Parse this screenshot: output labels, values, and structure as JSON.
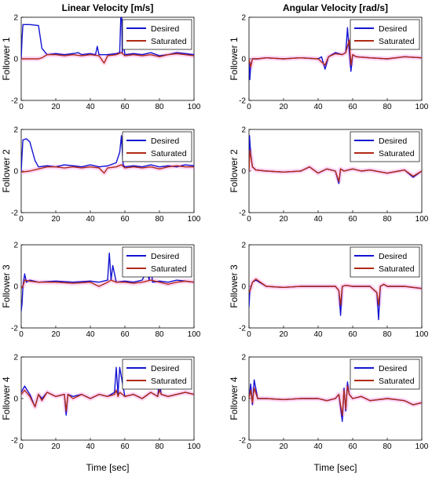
{
  "figure": {
    "col_titles": [
      "Linear Velocity [m/s]",
      "Angular Velocity [rad/s]"
    ],
    "row_labels": [
      "Follower 1",
      "Follower 2",
      "Follower 3",
      "Follower 4"
    ],
    "xlabel": "Time [sec]",
    "series_colors": {
      "Desired": "#1414d2",
      "Saturated": "#b02a14"
    },
    "shade_color": "#ff6ee6"
  },
  "chart_data": [
    {
      "type": "line",
      "title": "Linear Velocity [m/s]",
      "ylabel": "Follower 1",
      "xlabel": "",
      "xlim": [
        0,
        100
      ],
      "ylim": [
        -2,
        2
      ],
      "xticks": [
        0,
        20,
        40,
        60,
        80,
        100
      ],
      "yticks": [
        -2,
        0,
        2
      ],
      "grid": false,
      "legend": "top-right",
      "series": [
        {
          "name": "Desired",
          "x": [
            0,
            0.5,
            1,
            5,
            10,
            12,
            15,
            20,
            25,
            30,
            33,
            35,
            40,
            43,
            44,
            45,
            50,
            55,
            57,
            58,
            58.5,
            59,
            60,
            65,
            70,
            75,
            80,
            85,
            90,
            95,
            100
          ],
          "y": [
            0,
            1.0,
            1.65,
            1.65,
            1.6,
            0.5,
            0.2,
            0.25,
            0.2,
            0.25,
            0.3,
            0.2,
            0.25,
            0.2,
            0.6,
            0.2,
            0.2,
            0.25,
            0.3,
            3.0,
            0.3,
            0.9,
            0.2,
            0.25,
            0.2,
            0.3,
            0.15,
            0.2,
            0.3,
            0.25,
            0.2
          ]
        },
        {
          "name": "Saturated",
          "x": [
            0,
            5,
            10,
            12,
            15,
            20,
            25,
            30,
            35,
            40,
            45,
            48,
            50,
            55,
            58,
            60,
            65,
            70,
            75,
            80,
            85,
            90,
            95,
            100
          ],
          "y": [
            0,
            0,
            0,
            0.05,
            0.2,
            0.2,
            0.15,
            0.2,
            0.15,
            0.2,
            0.15,
            -0.2,
            0.15,
            0.2,
            0.3,
            0.15,
            0.2,
            0.15,
            0.2,
            0.1,
            0.2,
            0.25,
            0.2,
            0.15
          ]
        }
      ]
    },
    {
      "type": "line",
      "title": "Angular Velocity [rad/s]",
      "ylabel": "Follower 1",
      "xlabel": "",
      "xlim": [
        0,
        100
      ],
      "ylim": [
        -2,
        2
      ],
      "xticks": [
        0,
        20,
        40,
        60,
        80,
        100
      ],
      "yticks": [
        -2,
        0,
        2
      ],
      "grid": false,
      "legend": "top-right",
      "series": [
        {
          "name": "Desired",
          "x": [
            0,
            0.5,
            1,
            2,
            5,
            10,
            20,
            30,
            40,
            42,
            44,
            46,
            50,
            54,
            56,
            57,
            58,
            59,
            60,
            62,
            70,
            80,
            90,
            100
          ],
          "y": [
            0,
            -1.0,
            -0.3,
            0,
            0,
            0.05,
            0,
            0.05,
            0,
            0.1,
            -0.5,
            0.1,
            0.3,
            0.2,
            0.3,
            1.5,
            0.4,
            -0.6,
            0.2,
            0.1,
            0.05,
            0,
            0.1,
            0.05
          ]
        },
        {
          "name": "Saturated",
          "x": [
            0,
            1,
            2,
            5,
            10,
            20,
            30,
            40,
            44,
            46,
            50,
            54,
            56,
            58,
            59,
            60,
            62,
            70,
            80,
            90,
            100
          ],
          "y": [
            0,
            -0.4,
            0,
            0,
            0.05,
            0,
            0.05,
            0,
            -0.3,
            0.1,
            0.25,
            0.2,
            0.3,
            0.9,
            -0.3,
            0.2,
            0.1,
            0.05,
            0,
            0.1,
            0.05
          ]
        }
      ]
    },
    {
      "type": "line",
      "title": "",
      "ylabel": "Follower 2",
      "xlabel": "",
      "xlim": [
        0,
        100
      ],
      "ylim": [
        -2,
        2
      ],
      "xticks": [
        0,
        20,
        40,
        60,
        80,
        100
      ],
      "yticks": [
        -2,
        0,
        2
      ],
      "grid": false,
      "legend": "top-right",
      "series": [
        {
          "name": "Desired",
          "x": [
            0,
            0.5,
            1,
            3,
            5,
            8,
            10,
            15,
            20,
            25,
            30,
            35,
            40,
            45,
            50,
            55,
            57,
            58,
            59,
            60,
            65,
            70,
            75,
            80,
            85,
            90,
            95,
            100
          ],
          "y": [
            0,
            0.8,
            1.5,
            1.55,
            1.4,
            0.5,
            0.2,
            0.25,
            0.2,
            0.3,
            0.25,
            0.2,
            0.3,
            0.2,
            0.25,
            0.4,
            0.9,
            1.7,
            0.3,
            0.2,
            0.25,
            0.2,
            0.3,
            0.2,
            0.25,
            0.2,
            0.3,
            0.25
          ]
        },
        {
          "name": "Saturated",
          "x": [
            0,
            5,
            10,
            15,
            20,
            25,
            30,
            35,
            40,
            45,
            48,
            50,
            55,
            58,
            60,
            65,
            70,
            75,
            80,
            85,
            90,
            95,
            100
          ],
          "y": [
            -0.05,
            0,
            0.1,
            0.2,
            0.2,
            0.15,
            0.2,
            0.15,
            0.2,
            0.15,
            -0.1,
            0.15,
            0.2,
            0.3,
            0.15,
            0.2,
            0.15,
            0.2,
            0.1,
            0.2,
            0.25,
            0.2,
            0.2
          ]
        }
      ]
    },
    {
      "type": "line",
      "title": "",
      "ylabel": "Follower 2",
      "xlabel": "",
      "xlim": [
        0,
        100
      ],
      "ylim": [
        -2,
        2
      ],
      "xticks": [
        0,
        20,
        40,
        60,
        80,
        100
      ],
      "yticks": [
        -2,
        0,
        2
      ],
      "grid": false,
      "legend": "top-right",
      "series": [
        {
          "name": "Desired",
          "x": [
            0,
            0.3,
            1,
            2,
            4,
            10,
            20,
            30,
            35,
            40,
            45,
            50,
            52,
            53,
            55,
            60,
            65,
            70,
            80,
            90,
            95,
            100
          ],
          "y": [
            0,
            1.7,
            0.8,
            0.2,
            0.05,
            0,
            -0.05,
            0,
            0.2,
            -0.1,
            0.1,
            0,
            -0.6,
            0.1,
            0,
            0.1,
            0,
            0.05,
            -0.1,
            0.05,
            -0.3,
            0
          ]
        },
        {
          "name": "Saturated",
          "x": [
            0,
            0.5,
            2,
            4,
            10,
            20,
            30,
            35,
            40,
            45,
            50,
            52,
            53,
            55,
            60,
            65,
            70,
            80,
            90,
            95,
            100
          ],
          "y": [
            0,
            1.0,
            0.2,
            0.05,
            0,
            -0.05,
            0,
            0.2,
            -0.1,
            0.1,
            0,
            -0.5,
            0.1,
            0,
            0.1,
            0,
            0.05,
            -0.1,
            0.05,
            -0.25,
            0
          ]
        }
      ]
    },
    {
      "type": "line",
      "title": "",
      "ylabel": "Follower 3",
      "xlabel": "",
      "xlim": [
        0,
        100
      ],
      "ylim": [
        -2,
        2
      ],
      "xticks": [
        0,
        20,
        40,
        60,
        80,
        100
      ],
      "yticks": [
        -2,
        0,
        2
      ],
      "grid": false,
      "legend": "top-right",
      "series": [
        {
          "name": "Desired",
          "x": [
            0,
            0.5,
            1,
            2,
            3,
            5,
            10,
            20,
            30,
            40,
            45,
            50,
            51,
            52,
            53,
            55,
            60,
            65,
            70,
            73,
            74,
            75,
            76,
            80,
            85,
            90,
            95,
            100
          ],
          "y": [
            -1.2,
            -0.8,
            0,
            0.6,
            0.2,
            0.3,
            0.2,
            0.25,
            0.2,
            0.25,
            0.2,
            0.3,
            1.6,
            0.3,
            1.0,
            0.2,
            0.25,
            0.2,
            0.3,
            0.8,
            0.3,
            1.0,
            0.2,
            0.25,
            0.2,
            0.3,
            0.25,
            0.2
          ]
        },
        {
          "name": "Saturated",
          "x": [
            0,
            1,
            2,
            5,
            10,
            20,
            30,
            40,
            45,
            50,
            52,
            55,
            60,
            65,
            70,
            75,
            80,
            85,
            90,
            95,
            100
          ],
          "y": [
            -0.1,
            0,
            0.3,
            0.25,
            0.2,
            0.2,
            0.15,
            0.2,
            0.0,
            0.2,
            0.3,
            0.2,
            0.2,
            0.15,
            0.2,
            0.3,
            0.2,
            0.1,
            0.2,
            0.25,
            0.2
          ]
        }
      ]
    },
    {
      "type": "line",
      "title": "",
      "ylabel": "Follower 3",
      "xlabel": "",
      "xlim": [
        0,
        100
      ],
      "ylim": [
        -2,
        2
      ],
      "xticks": [
        0,
        20,
        40,
        60,
        80,
        100
      ],
      "yticks": [
        -2,
        0,
        2
      ],
      "grid": false,
      "legend": "top-right",
      "series": [
        {
          "name": "Desired",
          "x": [
            0,
            0.5,
            2,
            4,
            10,
            20,
            30,
            40,
            50,
            52,
            53,
            54,
            56,
            60,
            70,
            74,
            75,
            76,
            78,
            80,
            90,
            100
          ],
          "y": [
            -1.0,
            -0.2,
            0.2,
            0.3,
            0,
            -0.05,
            0,
            0,
            0,
            -0.2,
            -1.4,
            0,
            0.05,
            0,
            0,
            -0.3,
            -1.6,
            0,
            0.1,
            0,
            0,
            -0.1
          ]
        },
        {
          "name": "Saturated",
          "x": [
            0,
            1,
            2,
            4,
            10,
            20,
            30,
            40,
            50,
            52,
            53,
            54,
            56,
            60,
            70,
            74,
            75,
            76,
            78,
            80,
            90,
            100
          ],
          "y": [
            -0.3,
            -0.1,
            0.2,
            0.35,
            0,
            -0.05,
            0,
            0,
            0,
            -0.2,
            -0.9,
            0,
            0.05,
            0,
            0,
            -0.3,
            -0.9,
            0,
            0.1,
            0,
            0,
            -0.1
          ]
        }
      ]
    },
    {
      "type": "line",
      "title": "",
      "ylabel": "Follower 4",
      "xlabel": "",
      "xlim": [
        0,
        100
      ],
      "ylim": [
        -2,
        2
      ],
      "xticks": [
        0,
        20,
        40,
        60,
        80,
        100
      ],
      "yticks": [
        -2,
        0,
        2
      ],
      "grid": false,
      "legend": "top-right",
      "series": [
        {
          "name": "Desired",
          "x": [
            0,
            2,
            5,
            8,
            10,
            12,
            15,
            20,
            25,
            26,
            27,
            30,
            35,
            40,
            45,
            50,
            54,
            55,
            56,
            57,
            60,
            65,
            70,
            75,
            79,
            80,
            81,
            85,
            90,
            95,
            100
          ],
          "y": [
            0.3,
            0.6,
            0.2,
            -0.4,
            0.2,
            0.0,
            0.3,
            0.1,
            0.2,
            -0.8,
            0.2,
            0.1,
            0.2,
            0.0,
            0.2,
            0.1,
            0.3,
            1.5,
            0.2,
            1.5,
            0.1,
            0.2,
            0.0,
            0.3,
            0.1,
            0.8,
            0.2,
            0.1,
            0.2,
            0.3,
            0.2
          ]
        },
        {
          "name": "Saturated",
          "x": [
            0,
            2,
            5,
            8,
            10,
            12,
            15,
            20,
            25,
            26,
            27,
            30,
            35,
            40,
            45,
            50,
            54,
            55,
            56,
            57,
            60,
            65,
            70,
            75,
            79,
            80,
            81,
            85,
            90,
            95,
            100
          ],
          "y": [
            0.2,
            0.4,
            0.1,
            -0.4,
            0.2,
            -0.1,
            0.3,
            0.1,
            0.2,
            -0.6,
            0.2,
            0.0,
            0.2,
            0.0,
            0.2,
            0.1,
            0.2,
            0.4,
            0.1,
            0.3,
            0.1,
            0.2,
            0.0,
            0.3,
            0.1,
            0.4,
            0.2,
            0.1,
            0.2,
            0.3,
            0.2
          ]
        }
      ]
    },
    {
      "type": "line",
      "title": "",
      "ylabel": "Follower 4",
      "xlabel": "Time [sec]",
      "xlim": [
        0,
        100
      ],
      "ylim": [
        -2,
        2
      ],
      "xticks": [
        0,
        20,
        40,
        60,
        80,
        100
      ],
      "yticks": [
        -2,
        0,
        2
      ],
      "grid": false,
      "legend": "top-right",
      "series": [
        {
          "name": "Desired",
          "x": [
            0,
            1,
            2,
            3,
            5,
            10,
            20,
            30,
            40,
            45,
            50,
            52,
            54,
            55,
            56,
            57,
            58,
            60,
            65,
            70,
            80,
            90,
            95,
            100
          ],
          "y": [
            0,
            0.7,
            -0.3,
            0.9,
            0,
            0,
            -0.05,
            0,
            0,
            -0.1,
            0,
            0.2,
            -1.1,
            0.5,
            -0.6,
            0.8,
            0.2,
            0,
            0.1,
            -0.1,
            0,
            -0.1,
            -0.3,
            -0.2
          ]
        },
        {
          "name": "Saturated",
          "x": [
            0,
            1,
            2,
            3,
            5,
            10,
            20,
            30,
            40,
            45,
            50,
            52,
            54,
            55,
            56,
            57,
            58,
            60,
            65,
            70,
            80,
            90,
            95,
            100
          ],
          "y": [
            0,
            0.4,
            -0.2,
            0.5,
            0,
            0,
            -0.05,
            0,
            0,
            -0.1,
            0,
            0.2,
            -0.8,
            0.4,
            -0.5,
            0.6,
            0.2,
            0,
            0.1,
            -0.1,
            0,
            -0.1,
            -0.3,
            -0.2
          ]
        }
      ]
    }
  ]
}
